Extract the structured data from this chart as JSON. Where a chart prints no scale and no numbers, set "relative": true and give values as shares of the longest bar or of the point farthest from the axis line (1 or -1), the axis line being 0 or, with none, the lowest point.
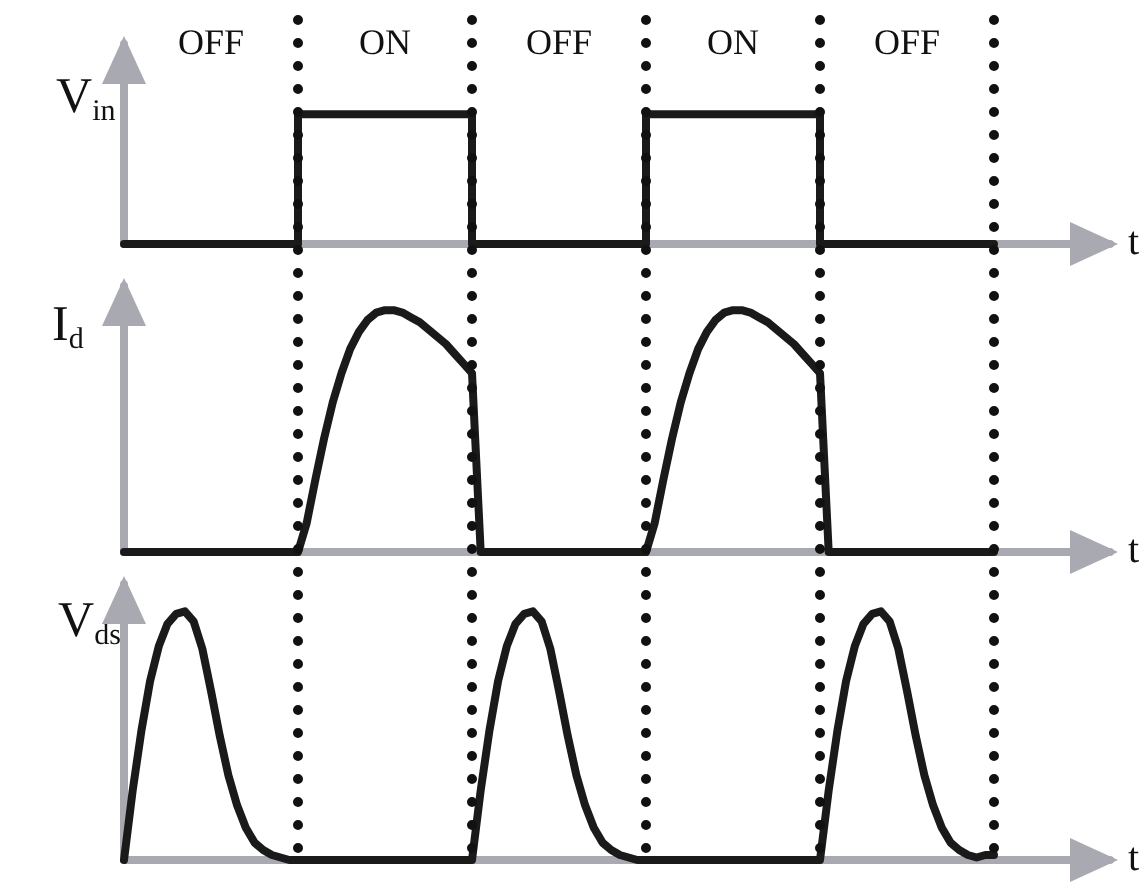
{
  "chart_data": [
    {
      "type": "step",
      "ylabel": "V$_{in}$",
      "xlabel": "t",
      "relative": true,
      "grid": "x",
      "color": "#1a1a1a",
      "annotations": [
        "OFF",
        "ON",
        "OFF",
        "ON",
        "OFF"
      ],
      "categories": [
        null,
        null,
        null,
        null,
        null,
        null,
        null,
        null,
        null,
        null,
        null,
        null,
        null,
        null,
        null,
        null,
        null,
        null,
        null,
        null,
        null,
        null,
        null,
        null,
        null,
        null,
        null,
        null,
        null,
        null,
        null,
        null,
        null,
        null,
        null,
        null,
        null,
        null,
        null,
        null,
        null,
        null,
        null,
        null,
        null,
        null,
        null,
        null,
        null,
        null,
        null,
        null,
        null,
        null,
        null,
        null,
        null,
        null,
        null,
        null,
        null,
        null,
        null,
        null,
        null,
        null,
        null,
        null,
        null,
        null,
        null,
        null,
        null,
        null,
        null,
        null,
        null,
        null,
        null,
        null,
        null,
        null,
        null,
        null,
        null,
        null,
        null,
        null,
        null,
        null,
        null,
        null,
        null,
        null,
        null,
        null,
        null,
        null,
        null,
        null,
        null
      ],
      "values": [
        0,
        0,
        0,
        0,
        0,
        0,
        0,
        0,
        0,
        0,
        0,
        0,
        0,
        0,
        0,
        0,
        0,
        0,
        0,
        0,
        1,
        1,
        1,
        1,
        1,
        1,
        1,
        1,
        1,
        1,
        1,
        1,
        1,
        1,
        1,
        1,
        1,
        1,
        1,
        1,
        0,
        0,
        0,
        0,
        0,
        0,
        0,
        0,
        0,
        0,
        0,
        0,
        0,
        0,
        0,
        0,
        0,
        0,
        0,
        0,
        1,
        1,
        1,
        1,
        1,
        1,
        1,
        1,
        1,
        1,
        1,
        1,
        1,
        1,
        1,
        1,
        1,
        1,
        1,
        1,
        0,
        0,
        0,
        0,
        0,
        0,
        0,
        0,
        0,
        0,
        0,
        0,
        0,
        0,
        0,
        0,
        0,
        0,
        0,
        0,
        0
      ]
    },
    {
      "type": "line",
      "ylabel": "I$_{d}$",
      "xlabel": "t",
      "relative": true,
      "color": "#1a1a1a",
      "categories": [
        null,
        null,
        null,
        null,
        null,
        null,
        null,
        null,
        null,
        null,
        null,
        null,
        null,
        null,
        null,
        null,
        null,
        null,
        null,
        null,
        null,
        null,
        null,
        null,
        null,
        null,
        null,
        null,
        null,
        null,
        null,
        null,
        null,
        null,
        null,
        null,
        null,
        null,
        null,
        null,
        null,
        null,
        null,
        null,
        null,
        null,
        null,
        null,
        null,
        null,
        null,
        null,
        null,
        null,
        null,
        null,
        null,
        null,
        null,
        null,
        null,
        null,
        null,
        null,
        null,
        null,
        null,
        null,
        null,
        null,
        null,
        null,
        null,
        null,
        null,
        null,
        null,
        null,
        null,
        null,
        null,
        null,
        null,
        null,
        null,
        null,
        null,
        null,
        null,
        null,
        null,
        null,
        null,
        null,
        null,
        null,
        null,
        null,
        null,
        null,
        null
      ],
      "values": [
        0,
        0,
        0,
        0,
        0,
        0,
        0,
        0,
        0,
        0,
        0,
        0,
        0,
        0,
        0,
        0,
        0,
        0,
        0,
        0,
        0,
        0.12,
        0.3,
        0.47,
        0.62,
        0.74,
        0.84,
        0.91,
        0.96,
        0.99,
        1,
        1,
        0.99,
        0.97,
        0.95,
        0.92,
        0.89,
        0.86,
        0.82,
        0.78,
        0.74,
        0,
        0,
        0,
        0,
        0,
        0,
        0,
        0,
        0,
        0,
        0,
        0,
        0,
        0,
        0,
        0,
        0,
        0,
        0,
        0,
        0.12,
        0.3,
        0.47,
        0.62,
        0.74,
        0.84,
        0.91,
        0.96,
        0.99,
        1,
        1,
        0.99,
        0.97,
        0.95,
        0.92,
        0.89,
        0.86,
        0.82,
        0.78,
        0.74,
        0,
        0,
        0,
        0,
        0,
        0,
        0,
        0,
        0,
        0,
        0,
        0,
        0,
        0,
        0,
        0,
        0,
        0,
        0,
        0
      ]
    },
    {
      "type": "line",
      "ylabel": "V$_{ds}$",
      "xlabel": "t",
      "relative": true,
      "color": "#1a1a1a",
      "categories": [
        null,
        null,
        null,
        null,
        null,
        null,
        null,
        null,
        null,
        null,
        null,
        null,
        null,
        null,
        null,
        null,
        null,
        null,
        null,
        null,
        null,
        null,
        null,
        null,
        null,
        null,
        null,
        null,
        null,
        null,
        null,
        null,
        null,
        null,
        null,
        null,
        null,
        null,
        null,
        null,
        null,
        null,
        null,
        null,
        null,
        null,
        null,
        null,
        null,
        null,
        null,
        null,
        null,
        null,
        null,
        null,
        null,
        null,
        null,
        null,
        null,
        null,
        null,
        null,
        null,
        null,
        null,
        null,
        null,
        null,
        null,
        null,
        null,
        null,
        null,
        null,
        null,
        null,
        null,
        null,
        null,
        null,
        null,
        null,
        null,
        null,
        null,
        null,
        null,
        null,
        null,
        null,
        null,
        null,
        null,
        null,
        null,
        null,
        null,
        null,
        null
      ],
      "values": [
        0,
        0.28,
        0.52,
        0.72,
        0.86,
        0.95,
        0.99,
        1,
        0.96,
        0.85,
        0.68,
        0.5,
        0.34,
        0.22,
        0.13,
        0.07,
        0.04,
        0.02,
        0.01,
        0,
        0,
        0,
        0,
        0,
        0,
        0,
        0,
        0,
        0,
        0,
        0,
        0,
        0,
        0,
        0,
        0,
        0,
        0,
        0,
        0,
        0,
        0.28,
        0.52,
        0.72,
        0.86,
        0.95,
        0.99,
        1,
        0.96,
        0.85,
        0.68,
        0.5,
        0.34,
        0.22,
        0.13,
        0.07,
        0.04,
        0.02,
        0.01,
        0,
        0,
        0,
        0,
        0,
        0,
        0,
        0,
        0,
        0,
        0,
        0,
        0,
        0,
        0,
        0,
        0,
        0,
        0,
        0,
        0,
        0,
        0.28,
        0.52,
        0.72,
        0.86,
        0.95,
        0.99,
        1,
        0.96,
        0.85,
        0.68,
        0.5,
        0.34,
        0.22,
        0.13,
        0.07,
        0.04,
        0.02,
        0.01,
        0.02,
        0.02
      ]
    }
  ]
}
